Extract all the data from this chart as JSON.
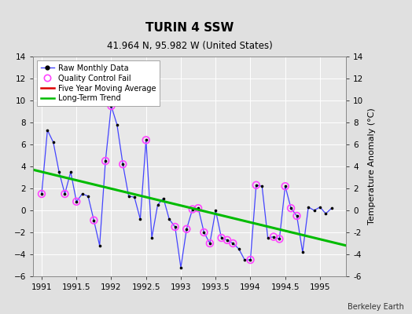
{
  "title": "TURIN 4 SSW",
  "subtitle": "41.964 N, 95.982 W (United States)",
  "ylabel": "Temperature Anomaly (°C)",
  "credit": "Berkeley Earth",
  "xlim": [
    1990.875,
    1995.375
  ],
  "ylim": [
    -6,
    14
  ],
  "yticks": [
    -6,
    -4,
    -2,
    0,
    2,
    4,
    6,
    8,
    10,
    12,
    14
  ],
  "xticks": [
    1991,
    1991.5,
    1992,
    1992.5,
    1993,
    1993.5,
    1994,
    1994.5,
    1995
  ],
  "bg_color": "#e0e0e0",
  "plot_bg_color": "#e8e8e8",
  "raw_data_x": [
    1991.0,
    1991.083,
    1991.167,
    1991.25,
    1991.333,
    1991.417,
    1991.5,
    1991.583,
    1991.667,
    1991.75,
    1991.833,
    1991.917,
    1992.0,
    1992.083,
    1992.167,
    1992.25,
    1992.333,
    1992.417,
    1992.5,
    1992.583,
    1992.667,
    1992.75,
    1992.833,
    1992.917,
    1993.0,
    1993.083,
    1993.167,
    1993.25,
    1993.333,
    1993.417,
    1993.5,
    1993.583,
    1993.667,
    1993.75,
    1993.833,
    1993.917,
    1994.0,
    1994.083,
    1994.167,
    1994.25,
    1994.333,
    1994.417,
    1994.5,
    1994.583,
    1994.667,
    1994.75,
    1994.833,
    1994.917,
    1995.0,
    1995.083,
    1995.167
  ],
  "raw_data_y": [
    1.5,
    7.3,
    6.2,
    3.5,
    1.5,
    3.5,
    0.8,
    1.5,
    1.3,
    -0.9,
    -3.2,
    4.5,
    9.5,
    7.8,
    4.2,
    1.3,
    1.2,
    -0.8,
    6.4,
    -2.5,
    0.5,
    1.1,
    -0.8,
    -1.5,
    -5.2,
    -1.7,
    0.1,
    0.2,
    -2.0,
    -3.0,
    0.0,
    -2.5,
    -2.7,
    -3.0,
    -3.5,
    -4.5,
    -4.5,
    2.3,
    2.2,
    -2.5,
    -2.4,
    -2.6,
    2.2,
    0.2,
    -0.5,
    -3.8,
    0.3,
    0.0,
    0.3,
    -0.3,
    0.2
  ],
  "qc_fail_x": [
    1991.0,
    1991.333,
    1991.5,
    1991.75,
    1991.917,
    1992.0,
    1992.167,
    1992.5,
    1992.917,
    1993.083,
    1993.167,
    1993.25,
    1993.333,
    1993.417,
    1993.583,
    1993.667,
    1993.75,
    1994.0,
    1994.083,
    1994.333,
    1994.417,
    1994.5,
    1994.583,
    1994.667
  ],
  "qc_fail_y": [
    1.5,
    1.5,
    0.8,
    -0.9,
    4.5,
    9.5,
    4.2,
    6.4,
    -1.5,
    -1.7,
    0.1,
    0.2,
    -2.0,
    -3.0,
    -2.5,
    -2.7,
    -3.0,
    -4.5,
    2.3,
    -2.4,
    -2.6,
    2.2,
    0.2,
    -0.5
  ],
  "trend_x": [
    1990.875,
    1995.375
  ],
  "trend_y": [
    3.7,
    -3.2
  ],
  "raw_line_color": "#4444ff",
  "raw_marker_color": "#000000",
  "qc_marker_color": "#ff44ff",
  "trend_color": "#00bb00",
  "five_year_color": "#dd0000",
  "grid_color": "#ffffff",
  "title_fontsize": 11,
  "subtitle_fontsize": 8.5,
  "tick_fontsize": 7.5,
  "ylabel_fontsize": 8,
  "legend_fontsize": 7,
  "credit_fontsize": 7
}
